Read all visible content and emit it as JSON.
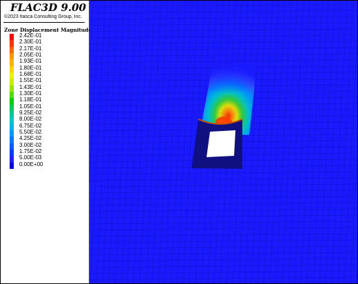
{
  "app": {
    "title": "FLAC3D 9.00",
    "copyright": "©2023 Itasca Consulting Group, Inc."
  },
  "legend": {
    "title": "Zone Displacement Magnitude",
    "entries": [
      {
        "label": "2.42E-01",
        "color": "#ff0000"
      },
      {
        "label": "2.30E-01",
        "color": "#ff3300"
      },
      {
        "label": "2.17E-01",
        "color": "#ff6600"
      },
      {
        "label": "2.05E-01",
        "color": "#ff9900"
      },
      {
        "label": "1.93E-01",
        "color": "#ffb300"
      },
      {
        "label": "1.80E-01",
        "color": "#ffd200"
      },
      {
        "label": "1.68E-01",
        "color": "#f0f000"
      },
      {
        "label": "1.55E-01",
        "color": "#c8f000"
      },
      {
        "label": "1.43E-01",
        "color": "#96e600"
      },
      {
        "label": "1.30E-01",
        "color": "#50dc00"
      },
      {
        "label": "1.18E-01",
        "color": "#00d200"
      },
      {
        "label": "1.05E-01",
        "color": "#00cc55"
      },
      {
        "label": "9.25E-02",
        "color": "#00c896"
      },
      {
        "label": "8.00E-02",
        "color": "#00c8c8"
      },
      {
        "label": "6.75E-02",
        "color": "#00b4f0"
      },
      {
        "label": "5.50E-02",
        "color": "#0096ff"
      },
      {
        "label": "4.25E-02",
        "color": "#0078ff"
      },
      {
        "label": "3.00E-02",
        "color": "#005aff"
      },
      {
        "label": "1.75E-02",
        "color": "#003cff"
      },
      {
        "label": "5.00E-03",
        "color": "#1e1eff"
      },
      {
        "label": "0.00E+00",
        "color": "#0000e6"
      }
    ]
  },
  "colors": {
    "background_field": "#1a1aff",
    "mesh_line": "#0d0d99",
    "tunnel_opening": "#ffffff",
    "tunnel_lining": "#101080"
  }
}
